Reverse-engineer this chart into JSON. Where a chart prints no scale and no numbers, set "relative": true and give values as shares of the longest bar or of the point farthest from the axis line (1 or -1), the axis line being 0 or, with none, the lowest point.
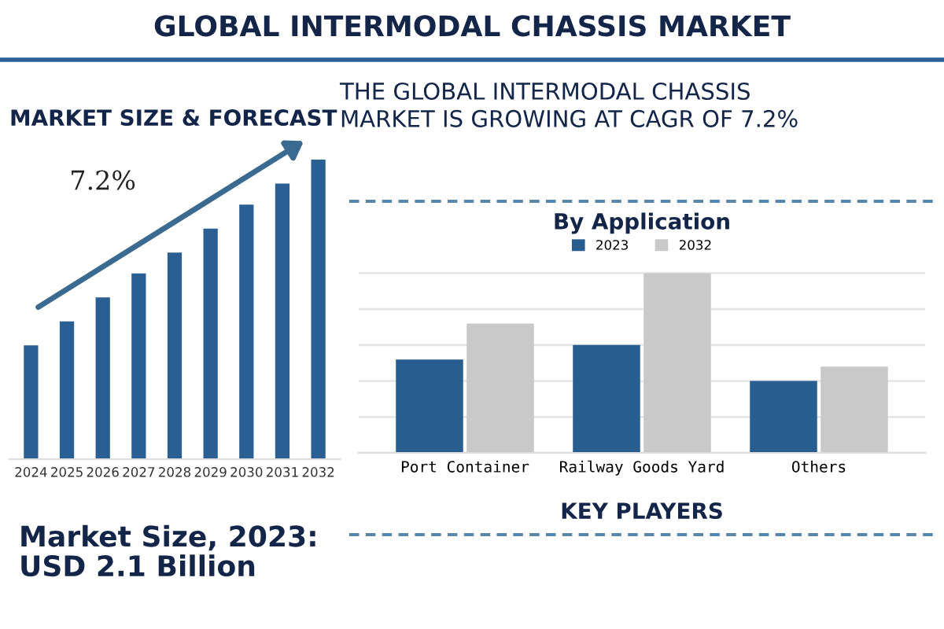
{
  "chart_data": [
    {
      "type": "bar",
      "title": "MARKET SIZE & FORECAST",
      "categories": [
        "2024",
        "2025",
        "2026",
        "2027",
        "2028",
        "2029",
        "2030",
        "2031",
        "2032"
      ],
      "values": [
        0.38,
        0.46,
        0.54,
        0.62,
        0.69,
        0.77,
        0.85,
        0.92,
        1
      ],
      "color": "#2a5f93",
      "relative": true,
      "annotations": [
        "GLOBAL INTERMODAL CHASSIS MARKET",
        "7.2%",
        "Market Size, 2023:\nUSD 2.1 Billion"
      ]
    },
    {
      "type": "bar",
      "title": "By Application",
      "categories": [
        "Port Container",
        "Railway Goods Yard",
        "Others"
      ],
      "series": [
        {
          "name": "2023",
          "color": "#285d8f",
          "values": [
            0.52,
            0.6,
            0.4
          ]
        },
        {
          "name": "2032",
          "color": "#c9c9c9",
          "values": [
            0.72,
            1.0,
            0.48
          ]
        }
      ],
      "relative": true,
      "grid": "y",
      "legend": "top",
      "annotations": [
        "THE GLOBAL INTERMODAL CHASSIS\nMARKET IS GROWING AT CAGR OF 7.2%",
        "KEY PLAYERS"
      ]
    }
  ]
}
